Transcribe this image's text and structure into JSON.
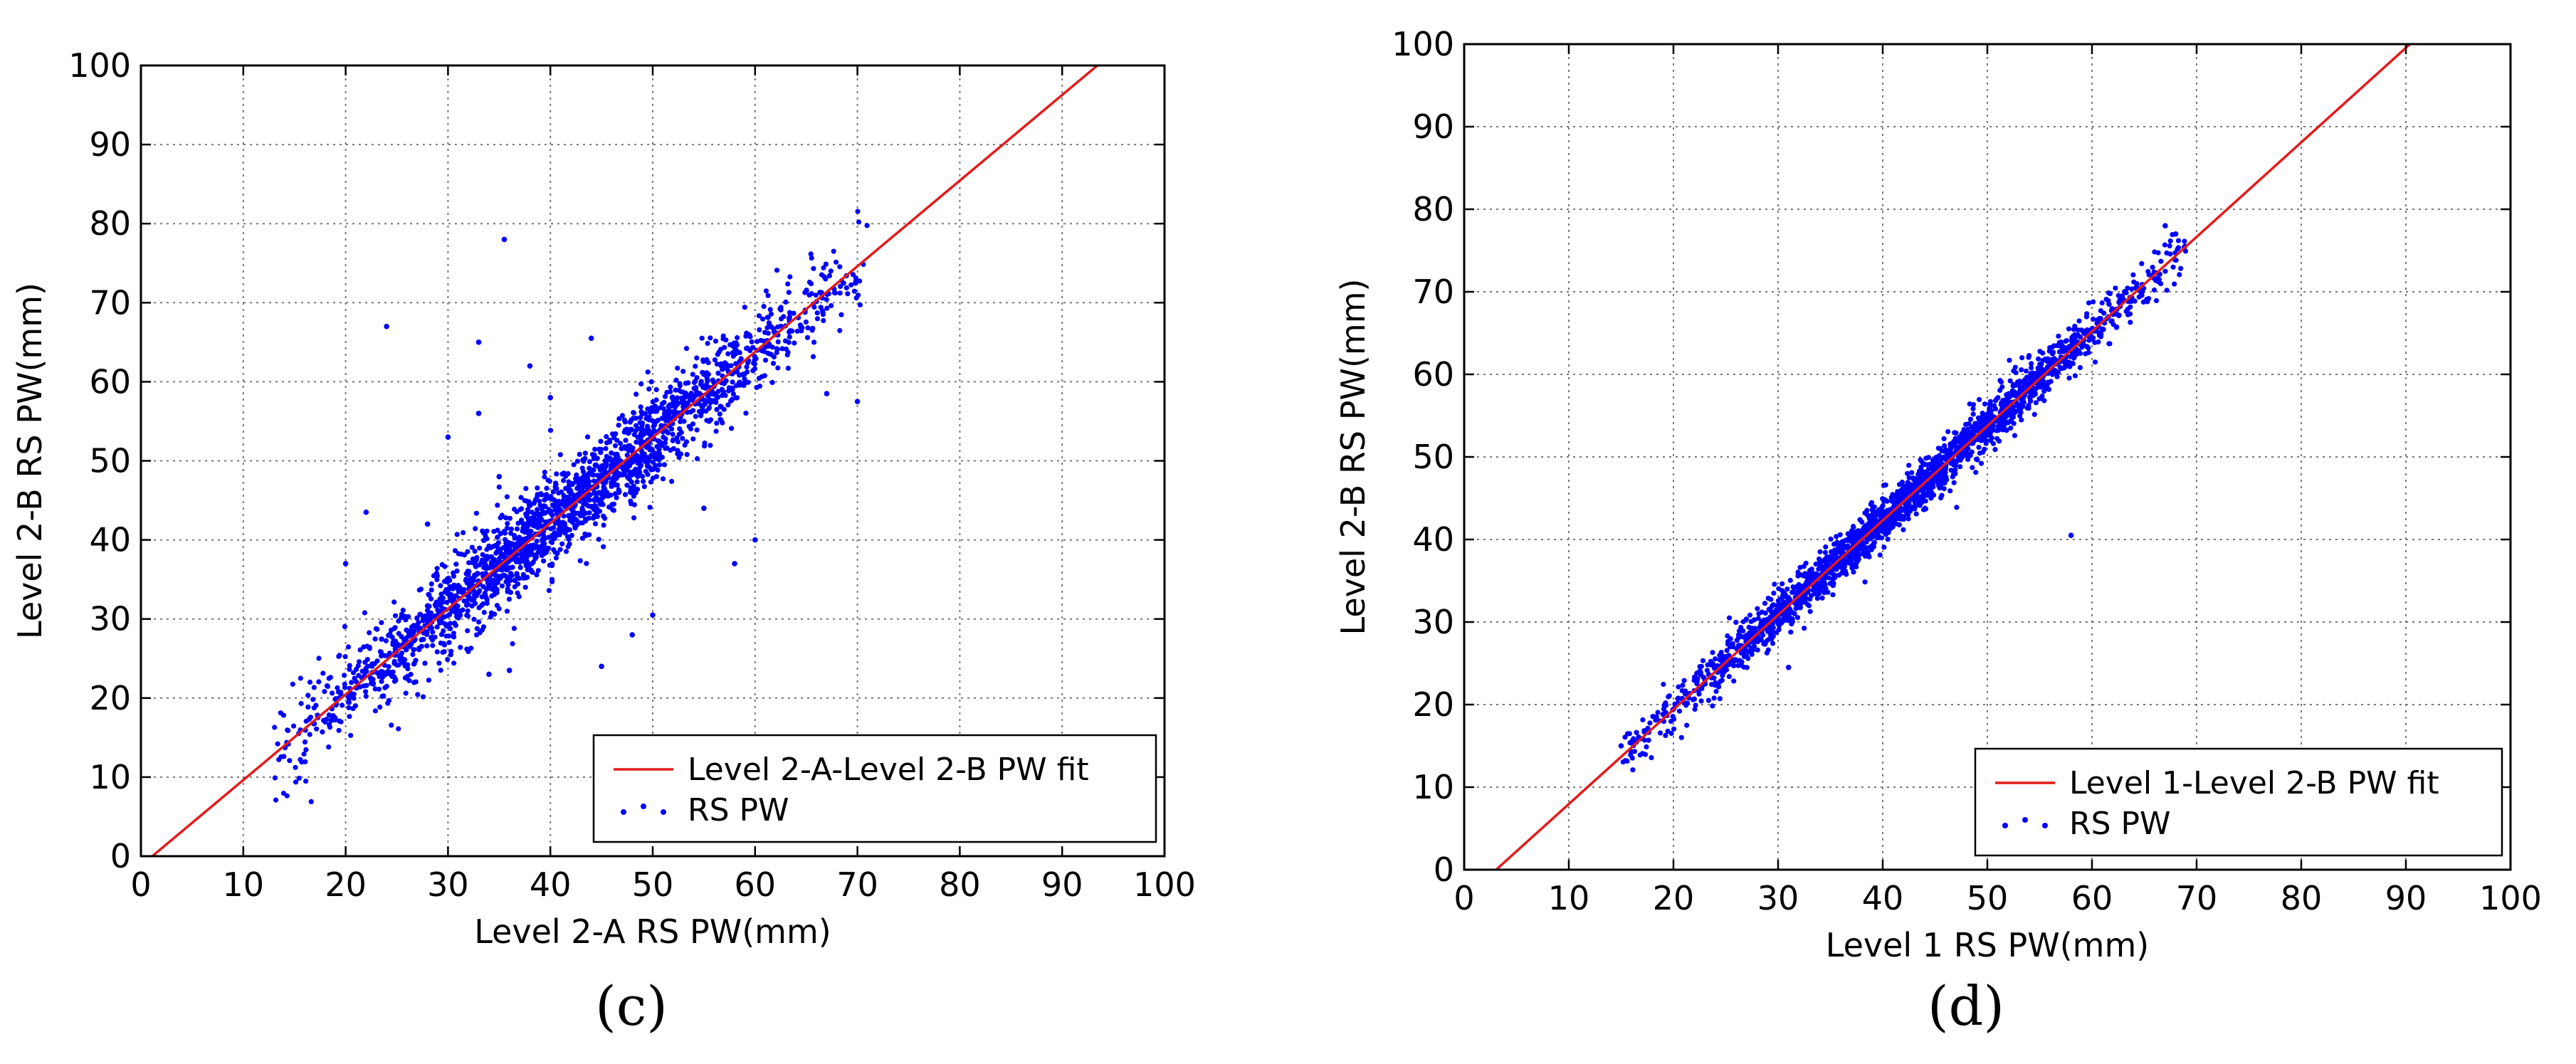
{
  "chart_data": [
    {
      "type": "scatter",
      "panel_label": "(c)",
      "panel_letter": "c",
      "xlabel": "Level 2-A RS PW(mm)",
      "ylabel": "Level 2-B RS PW(mm)",
      "xlim": [
        0,
        100
      ],
      "ylim": [
        0,
        100
      ],
      "xticks": [
        0,
        10,
        20,
        30,
        40,
        50,
        60,
        70,
        80,
        90,
        100
      ],
      "yticks": [
        0,
        10,
        20,
        30,
        40,
        50,
        60,
        70,
        80,
        90,
        100
      ],
      "grid": true,
      "legend_position": "lower-right",
      "series": [
        {
          "name": "Level 2-A-Level 2-B PW fit",
          "kind": "line",
          "color": "#e41a1c",
          "slope": 1.083,
          "intercept": -1.2
        },
        {
          "name": "RS PW",
          "kind": "scatter",
          "color": "#0000ff",
          "count": 2200,
          "x_range": [
            13,
            71
          ],
          "fit_slope": 1.083,
          "fit_intercept": -1.2,
          "scatter_sd": 2.8,
          "outliers": [
            [
              35.5,
              78
            ],
            [
              33,
              65
            ],
            [
              24,
              67
            ],
            [
              30,
              53
            ],
            [
              58,
              37
            ],
            [
              50,
              30.5
            ],
            [
              45,
              24
            ],
            [
              67,
              58.5
            ],
            [
              70,
              57.5
            ],
            [
              34,
              23
            ],
            [
              36,
              23.5
            ],
            [
              40,
              58
            ],
            [
              38,
              62
            ],
            [
              22,
              43.5
            ],
            [
              20,
              37
            ],
            [
              35,
              48
            ],
            [
              44,
              65.5
            ],
            [
              48,
              28
            ],
            [
              60,
              40
            ],
            [
              28,
              42
            ],
            [
              33,
              56
            ],
            [
              55,
              44
            ]
          ]
        }
      ]
    },
    {
      "type": "scatter",
      "panel_label": "(d)",
      "panel_letter": "d",
      "xlabel": "Level 1 RS PW(mm)",
      "ylabel": "Level 2-B RS PW(mm)",
      "xlim": [
        0,
        100
      ],
      "ylim": [
        0,
        100
      ],
      "xticks": [
        0,
        10,
        20,
        30,
        40,
        50,
        60,
        70,
        80,
        90,
        100
      ],
      "yticks": [
        0,
        10,
        20,
        30,
        40,
        50,
        60,
        70,
        80,
        90,
        100
      ],
      "grid": true,
      "legend_position": "lower-right",
      "series": [
        {
          "name": "Level 1-Level 2-B PW fit",
          "kind": "line",
          "color": "#e41a1c",
          "slope": 1.145,
          "intercept": -3.5
        },
        {
          "name": "RS PW",
          "kind": "scatter",
          "color": "#0000ff",
          "count": 2200,
          "x_range": [
            15,
            69
          ],
          "fit_slope": 1.145,
          "fit_intercept": -3.5,
          "scatter_sd": 1.4,
          "outliers": [
            [
              58,
              40.5
            ],
            [
              15,
              15
            ],
            [
              16,
              15.5
            ],
            [
              31,
              24.5
            ],
            [
              67,
              78
            ],
            [
              68,
              77
            ]
          ]
        }
      ]
    }
  ]
}
